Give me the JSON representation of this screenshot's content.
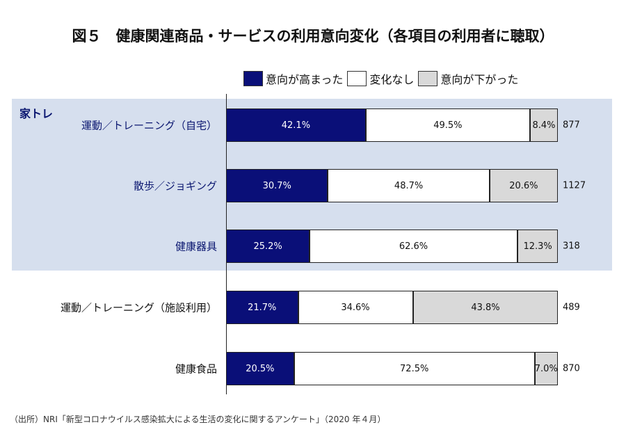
{
  "chart_data": {
    "type": "bar",
    "stacked": true,
    "orientation": "horizontal",
    "title": "図５　健康関連商品・サービスの利用意向変化（各項目の利用者に聴取）",
    "group_label": "家トレ",
    "categories": [
      "運動／トレーニング（自宅）",
      "散歩／ジョギング",
      "健康器具",
      "運動／トレーニング（施設利用）",
      "健康食品"
    ],
    "in_group": [
      true,
      true,
      true,
      false,
      false
    ],
    "series": [
      {
        "name": "意向が高まった",
        "color": "#0a0f78",
        "text_color": "#ffffff",
        "values": [
          42.1,
          30.7,
          25.2,
          21.7,
          20.5
        ]
      },
      {
        "name": "変化なし",
        "color": "#ffffff",
        "text_color": "#111111",
        "values": [
          49.5,
          48.7,
          62.6,
          34.6,
          72.5
        ]
      },
      {
        "name": "意向が下がった",
        "color": "#d9d9d9",
        "text_color": "#111111",
        "values": [
          8.4,
          20.6,
          12.3,
          43.8,
          7.0
        ]
      }
    ],
    "n": [
      "877",
      "1127",
      "318",
      "489",
      "870"
    ],
    "xlim": [
      0,
      100
    ],
    "legend_position": "top",
    "source": "（出所）NRI「新型コロナウイルス感染拡大による生活の変化に関するアンケート」（2020 年４月）"
  }
}
